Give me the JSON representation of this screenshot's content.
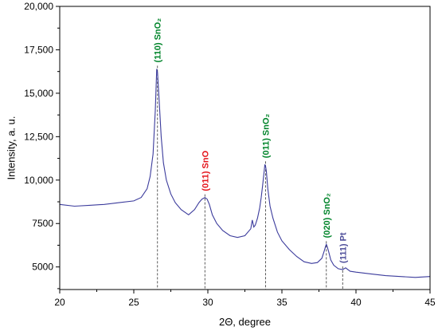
{
  "chart_data": {
    "type": "line",
    "xlabel": "2Θ, degree",
    "ylabel": "Intensity, a. u.",
    "xlim": [
      20,
      45
    ],
    "ylim": [
      3700,
      20000
    ],
    "x_ticks": [
      20,
      25,
      30,
      35,
      40,
      45
    ],
    "x_tick_labels": [
      "20",
      "25",
      "30",
      "35",
      "40",
      "45"
    ],
    "y_ticks": [
      5000,
      7500,
      10000,
      12500,
      15000,
      17500,
      20000
    ],
    "y_tick_labels": [
      "5000",
      "7500",
      "10,000",
      "12,500",
      "15,000",
      "17,500",
      "20,000"
    ],
    "grid": false,
    "line_color": "#3b3b9c",
    "series": [
      {
        "x": [
          20.0,
          21.0,
          22.0,
          23.0,
          24.0,
          25.0,
          25.5,
          25.9,
          26.1,
          26.3,
          26.45,
          26.55,
          26.6,
          26.7,
          26.85,
          27.0,
          27.2,
          27.5,
          27.8,
          28.2,
          28.7,
          29.1,
          29.4,
          29.6,
          29.8,
          29.95,
          30.1,
          30.3,
          30.6,
          31.0,
          31.5,
          32.0,
          32.5,
          32.9,
          33.0,
          33.1,
          33.2,
          33.35,
          33.5,
          33.6,
          33.7,
          33.8,
          33.85,
          33.9,
          33.95,
          34.05,
          34.2,
          34.4,
          34.7,
          35.0,
          35.5,
          36.0,
          36.5,
          37.0,
          37.4,
          37.7,
          37.85,
          37.95,
          38.0,
          38.05,
          38.15,
          38.3,
          38.5,
          38.8,
          39.1,
          39.3,
          39.6,
          40.0,
          41.0,
          42.0,
          43.0,
          44.0,
          45.0
        ],
        "y": [
          8600,
          8500,
          8550,
          8600,
          8700,
          8800,
          9000,
          9500,
          10200,
          11500,
          14000,
          16400,
          16200,
          14800,
          12500,
          11000,
          10000,
          9200,
          8700,
          8300,
          8000,
          8300,
          8700,
          8900,
          9000,
          8900,
          8600,
          8000,
          7500,
          7100,
          6800,
          6700,
          6800,
          7200,
          7700,
          7300,
          7400,
          7800,
          8400,
          9000,
          9700,
          10500,
          10900,
          10800,
          10500,
          9500,
          8500,
          7800,
          7000,
          6500,
          6000,
          5600,
          5300,
          5200,
          5250,
          5500,
          5900,
          6200,
          6300,
          6200,
          5900,
          5400,
          5100,
          4900,
          4850,
          4950,
          4750,
          4700,
          4600,
          4500,
          4450,
          4400,
          4450
        ]
      }
    ],
    "annotations": [
      {
        "label": "(110) SnO₂",
        "x": 26.6,
        "y": 16400,
        "color": "#00842a"
      },
      {
        "label": "(011) SnO",
        "x": 29.8,
        "y": 9000,
        "color": "#e4141b"
      },
      {
        "label": "(011) SnO₂",
        "x": 33.9,
        "y": 10900,
        "color": "#00842a"
      },
      {
        "label": "(020) SnO₂",
        "x": 38.0,
        "y": 6300,
        "color": "#00842a"
      },
      {
        "label": "(111) Pt",
        "x": 39.1,
        "y": 4850,
        "color": "#4e4e9a"
      }
    ]
  }
}
